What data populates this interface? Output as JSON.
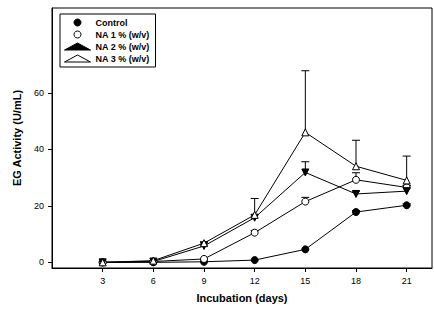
{
  "chart_data": {
    "type": "line",
    "x_label": "Incubation (days)",
    "y_label": "EG Activity (U/mL)",
    "xlim": [
      0,
      22.5
    ],
    "xticks": [
      3,
      6,
      9,
      12,
      15,
      18,
      21
    ],
    "ylim": [
      -2,
      90
    ],
    "yticks": [
      0,
      20,
      40,
      60
    ],
    "legend": "upper left",
    "grid": false,
    "x": [
      3,
      6,
      9,
      12,
      15,
      18,
      21
    ],
    "series": [
      {
        "name": "Control",
        "color": "#000000",
        "marker": "circle",
        "line_style": "solid",
        "values": [
          0,
          0,
          0.2,
          0.8,
          4.6,
          17.8,
          20.2
        ],
        "errors": [
          0,
          0,
          0,
          0,
          0,
          0.5,
          0.5
        ]
      },
      {
        "name": "NA 1 % (w/v)",
        "color": "#000000",
        "marker": "circle-open",
        "line_style": "solid",
        "values": [
          0,
          0.3,
          1.2,
          10.5,
          21.5,
          29.2,
          26.5
        ],
        "errors": [
          0,
          0,
          0,
          0.8,
          1.5,
          2.5,
          0.8
        ]
      },
      {
        "name": "NA 2 % (w/v)",
        "color": "#000000",
        "marker": "triangle-down",
        "line_style": "solid",
        "values": [
          0,
          0.3,
          5.8,
          15.8,
          31.8,
          24.2,
          25.2
        ],
        "errors": [
          0,
          0,
          0.3,
          1,
          3.8,
          1,
          2
        ]
      },
      {
        "name": "NA 3 % (w/v)",
        "color": "#000000",
        "marker": "triangle-open",
        "line_style": "solid",
        "values": [
          0,
          0.6,
          6.8,
          16.8,
          46,
          34,
          29
        ],
        "errors": [
          0,
          0,
          0.5,
          5.8,
          21.8,
          9.2,
          8.6
        ]
      }
    ]
  }
}
